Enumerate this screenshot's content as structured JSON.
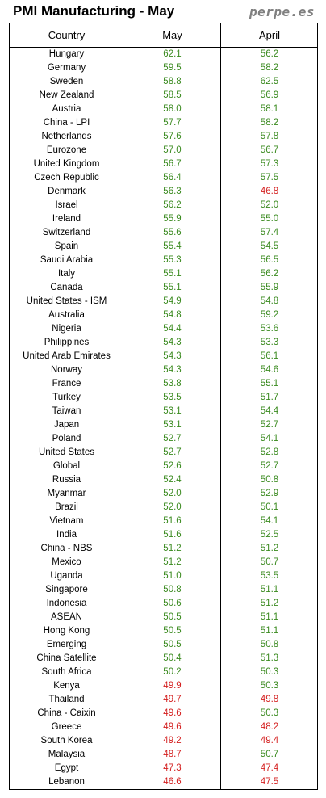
{
  "title": "PMI Manufacturing - May",
  "brand": "perpe.es",
  "colors": {
    "expansion": "#3a8a1f",
    "contraction": "#d42020"
  },
  "chart_data": {
    "type": "table",
    "columns": [
      "Country",
      "May",
      "April"
    ],
    "threshold": 50,
    "rows": [
      [
        "Hungary",
        "62.1",
        "56.2"
      ],
      [
        "Germany",
        "59.5",
        "58.2"
      ],
      [
        "Sweden",
        "58.8",
        "62.5"
      ],
      [
        "New Zealand",
        "58.5",
        "56.9"
      ],
      [
        "Austria",
        "58.0",
        "58.1"
      ],
      [
        "China - LPI",
        "57.7",
        "58.2"
      ],
      [
        "Netherlands",
        "57.6",
        "57.8"
      ],
      [
        "Eurozone",
        "57.0",
        "56.7"
      ],
      [
        "United Kingdom",
        "56.7",
        "57.3"
      ],
      [
        "Czech Republic",
        "56.4",
        "57.5"
      ],
      [
        "Denmark",
        "56.3",
        "46.8"
      ],
      [
        "Israel",
        "56.2",
        "52.0"
      ],
      [
        "Ireland",
        "55.9",
        "55.0"
      ],
      [
        "Switzerland",
        "55.6",
        "57.4"
      ],
      [
        "Spain",
        "55.4",
        "54.5"
      ],
      [
        "Saudi Arabia",
        "55.3",
        "56.5"
      ],
      [
        "Italy",
        "55.1",
        "56.2"
      ],
      [
        "Canada",
        "55.1",
        "55.9"
      ],
      [
        "United States - ISM",
        "54.9",
        "54.8"
      ],
      [
        "Australia",
        "54.8",
        "59.2"
      ],
      [
        "Nigeria",
        "54.4",
        "53.6"
      ],
      [
        "Philippines",
        "54.3",
        "53.3"
      ],
      [
        "United Arab Emirates",
        "54.3",
        "56.1"
      ],
      [
        "Norway",
        "54.3",
        "54.6"
      ],
      [
        "France",
        "53.8",
        "55.1"
      ],
      [
        "Turkey",
        "53.5",
        "51.7"
      ],
      [
        "Taiwan",
        "53.1",
        "54.4"
      ],
      [
        "Japan",
        "53.1",
        "52.7"
      ],
      [
        "Poland",
        "52.7",
        "54.1"
      ],
      [
        "United States",
        "52.7",
        "52.8"
      ],
      [
        "Global",
        "52.6",
        "52.7"
      ],
      [
        "Russia",
        "52.4",
        "50.8"
      ],
      [
        "Myanmar",
        "52.0",
        "52.9"
      ],
      [
        "Brazil",
        "52.0",
        "50.1"
      ],
      [
        "Vietnam",
        "51.6",
        "54.1"
      ],
      [
        "India",
        "51.6",
        "52.5"
      ],
      [
        "China - NBS",
        "51.2",
        "51.2"
      ],
      [
        "Mexico",
        "51.2",
        "50.7"
      ],
      [
        "Uganda",
        "51.0",
        "53.5"
      ],
      [
        "Singapore",
        "50.8",
        "51.1"
      ],
      [
        "Indonesia",
        "50.6",
        "51.2"
      ],
      [
        "ASEAN",
        "50.5",
        "51.1"
      ],
      [
        "Hong Kong",
        "50.5",
        "51.1"
      ],
      [
        "Emerging",
        "50.5",
        "50.8"
      ],
      [
        "China Satellite",
        "50.4",
        "51.3"
      ],
      [
        "South Africa",
        "50.2",
        "50.3"
      ],
      [
        "Kenya",
        "49.9",
        "50.3"
      ],
      [
        "Thailand",
        "49.7",
        "49.8"
      ],
      [
        "China - Caixin",
        "49.6",
        "50.3"
      ],
      [
        "Greece",
        "49.6",
        "48.2"
      ],
      [
        "South Korea",
        "49.2",
        "49.4"
      ],
      [
        "Malaysia",
        "48.7",
        "50.7"
      ],
      [
        "Egypt",
        "47.3",
        "47.4"
      ],
      [
        "Lebanon",
        "46.6",
        "47.5"
      ]
    ]
  }
}
